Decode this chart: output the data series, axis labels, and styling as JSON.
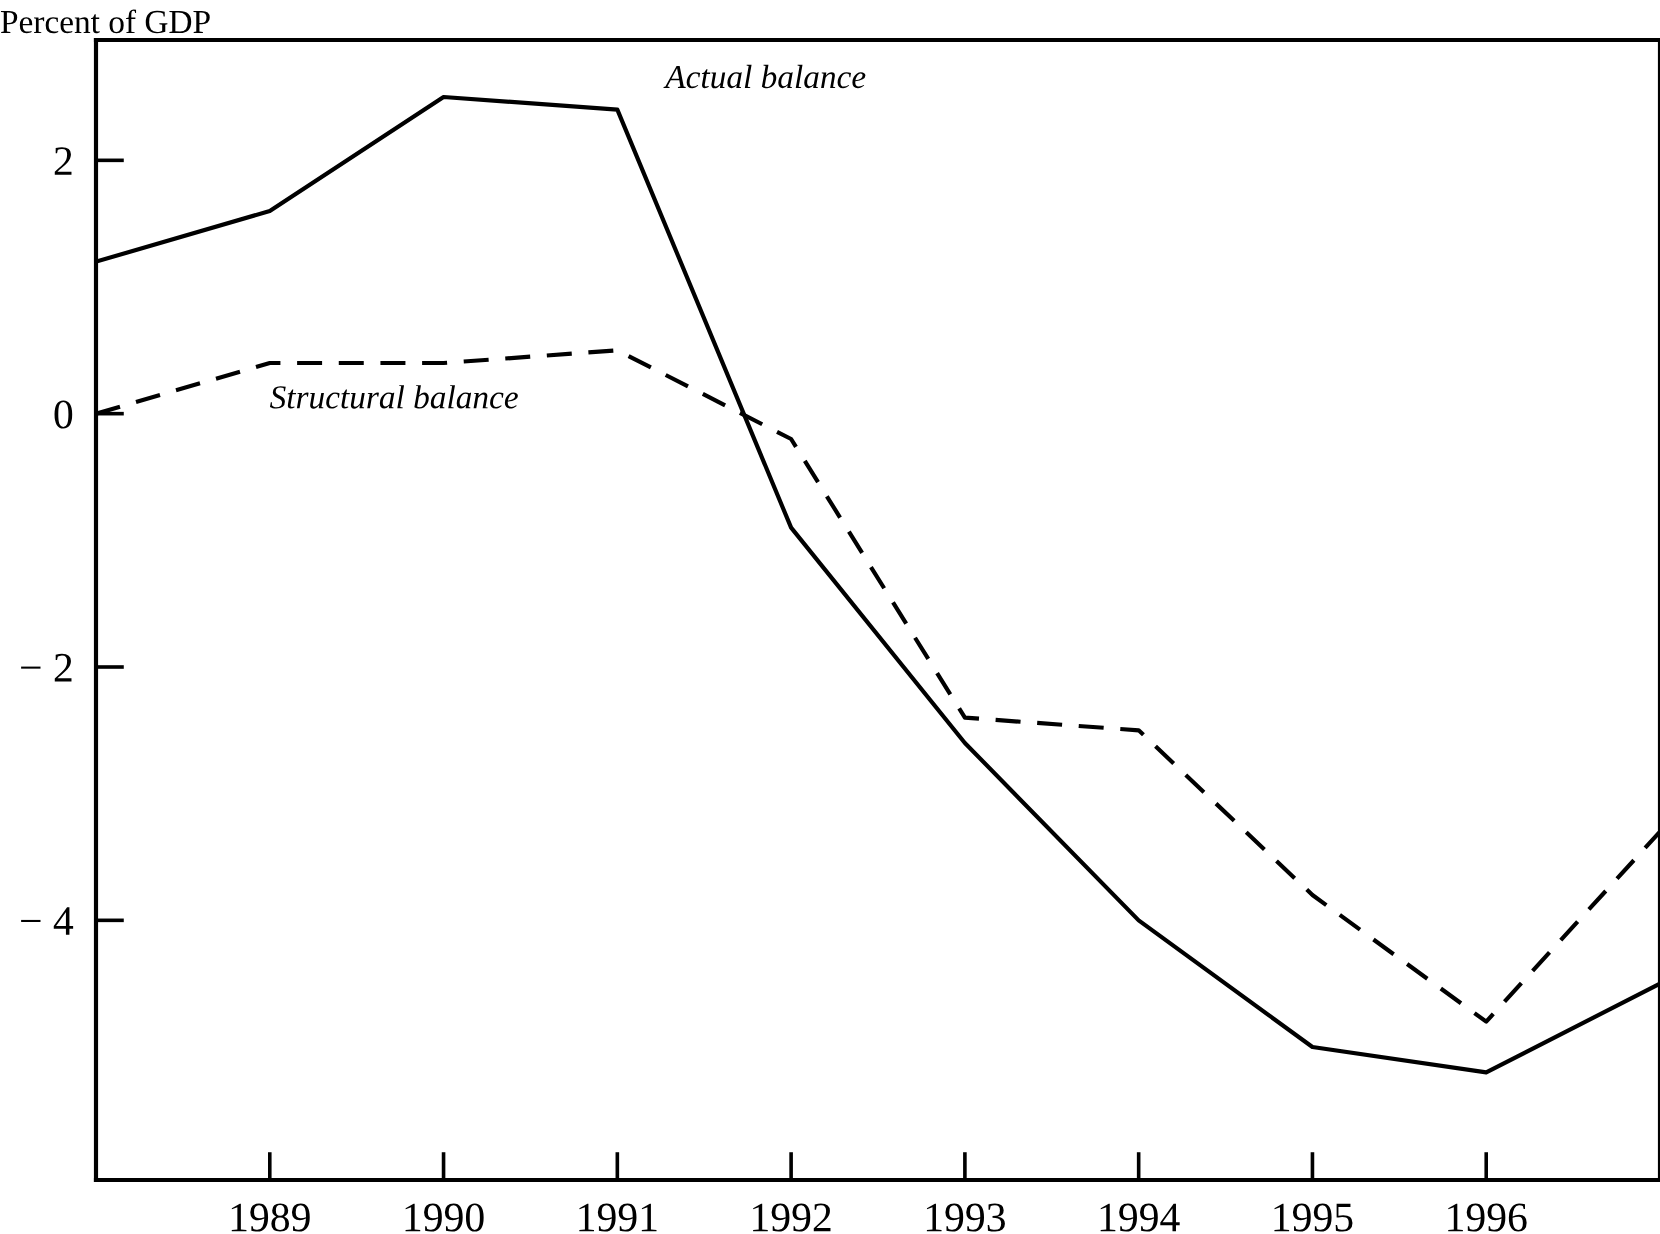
{
  "chart_data": {
    "type": "line",
    "ylabel": "Percent of GDP",
    "x": [
      1988,
      1989,
      1990,
      1991,
      1992,
      1993,
      1994,
      1995,
      1996,
      1997
    ],
    "series": [
      {
        "color": "#000000",
        "line_style": "solid",
        "values": [
          1.2,
          1.6,
          2.5,
          2.4,
          -0.9,
          -2.6,
          -4.0,
          -5.0,
          -5.2,
          -4.5
        ]
      },
      {
        "color": "#000000",
        "line_style": "dashed",
        "values": [
          0.0,
          0.4,
          0.4,
          0.5,
          -0.2,
          -2.4,
          -2.5,
          -3.8,
          -4.8,
          -3.3
        ]
      }
    ],
    "xlim": [
      1988,
      1997
    ],
    "xticks": [
      1989,
      1990,
      1991,
      1992,
      1993,
      1994,
      1995,
      1996
    ],
    "ylim": [
      -6.05,
      2.95
    ],
    "yticks": [
      {
        "value": -4,
        "label": "− 4"
      },
      {
        "value": -2,
        "label": "− 2"
      },
      0,
      2
    ],
    "grid": false,
    "legend": false,
    "marker": "none",
    "annotations": [
      "Actual balance",
      "Structural balance"
    ]
  }
}
